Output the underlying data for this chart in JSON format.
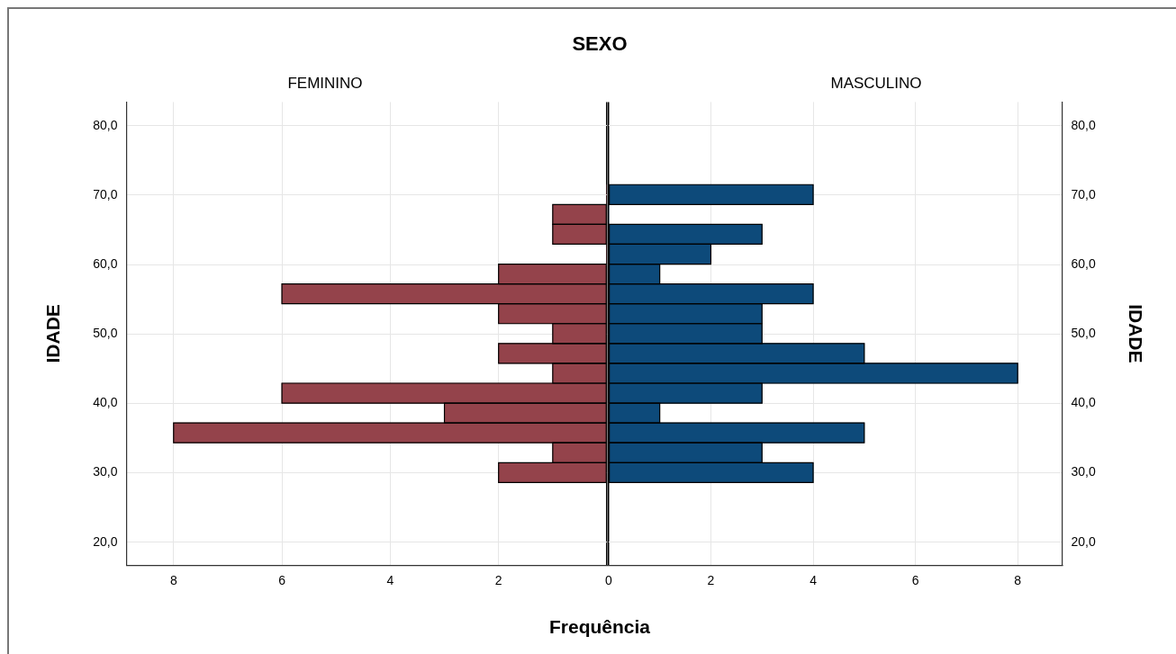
{
  "chart_data": [
    {
      "type": "histogram",
      "orientation": "horizontal",
      "title": "SEXO",
      "subtitle": "FEMININO",
      "xlabel": "Frequência",
      "ylabel": "IDADE",
      "bins": [
        28.6,
        31.46,
        34.32,
        37.18,
        40.04,
        42.9,
        45.76,
        48.62,
        51.48,
        54.34,
        57.2,
        60.06,
        62.92,
        65.78,
        68.64,
        71.5
      ],
      "values": [
        2,
        1,
        8,
        3,
        6,
        1,
        2,
        1,
        2,
        6,
        2,
        0,
        1,
        1,
        0
      ],
      "color": "#94434b",
      "xlim": [
        8.87,
        0
      ],
      "xticks": [
        8,
        6,
        4,
        2,
        {
          "value": 0,
          "label": null
        }
      ],
      "ylim": [
        16.7,
        83.4
      ],
      "yticks": [
        {
          "value": 20,
          "label": "20,0"
        },
        {
          "value": 30,
          "label": "30,0"
        },
        {
          "value": 40,
          "label": "40,0"
        },
        {
          "value": 50,
          "label": "50,0"
        },
        {
          "value": 60,
          "label": "60,0"
        },
        {
          "value": 70,
          "label": "70,0"
        },
        {
          "value": 80,
          "label": "80,0"
        }
      ],
      "grid": true
    },
    {
      "type": "histogram",
      "orientation": "horizontal",
      "subtitle": "MASCULINO",
      "ylabel": "IDADE",
      "bins": [
        28.6,
        31.46,
        34.32,
        37.18,
        40.04,
        42.9,
        45.76,
        48.62,
        51.48,
        54.34,
        57.2,
        60.06,
        62.92,
        65.78,
        68.64,
        71.5
      ],
      "values": [
        4,
        3,
        5,
        1,
        3,
        8,
        5,
        3,
        3,
        4,
        1,
        2,
        3,
        0,
        4
      ],
      "color": "#0d4a7a",
      "xlim": [
        0,
        8.87
      ],
      "xticks": [
        0,
        2,
        4,
        6,
        8
      ],
      "ylim": [
        16.7,
        83.4
      ],
      "yticks": [
        {
          "value": 20,
          "label": "20,0"
        },
        {
          "value": 30,
          "label": "30,0"
        },
        {
          "value": 40,
          "label": "40,0"
        },
        {
          "value": 50,
          "label": "50,0"
        },
        {
          "value": 60,
          "label": "60,0"
        },
        {
          "value": 70,
          "label": "70,0"
        },
        {
          "value": 80,
          "label": "80,0"
        }
      ],
      "grid": true
    }
  ]
}
